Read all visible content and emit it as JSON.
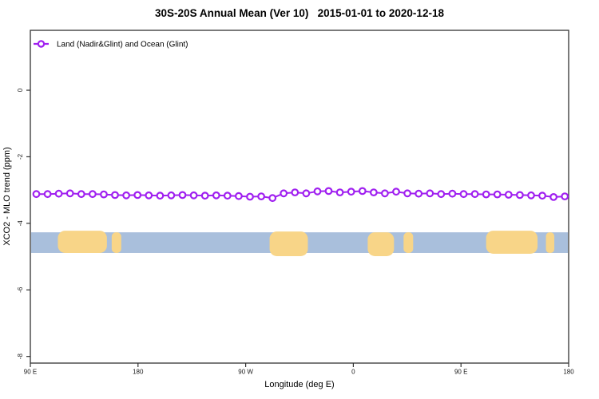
{
  "header": {
    "title": "30S-20S Annual Mean (Ver 10)   2015-01-01 to 2020-12-18"
  },
  "legend": {
    "label": "Land (Nadir&Glint) and Ocean (Glint)",
    "marker": "open-circle-on-line",
    "color": "#A020F0"
  },
  "colors": {
    "series_purple": "#A020F0",
    "ocean_blue": "#A9BFDC",
    "land_tan": "#F8D588",
    "frame": "#333333",
    "text": "#000000"
  },
  "chart_data": {
    "type": "line",
    "title": "30S-20S Annual Mean (Ver 10)   2015-01-01 to 2020-12-18",
    "xlabel": "Longitude (deg E)",
    "ylabel": "XCO2 - MLO trend (ppm)",
    "xlim": [
      90,
      540
    ],
    "ylim": [
      -8.2,
      1.8
    ],
    "grid": false,
    "legend_position": "top-left-inside",
    "x_ticks": [
      {
        "value": 90,
        "label": "90 E"
      },
      {
        "value": 180,
        "label": "180"
      },
      {
        "value": 270,
        "label": "90 W"
      },
      {
        "value": 360,
        "label": "0"
      },
      {
        "value": 450,
        "label": "90 E"
      },
      {
        "value": 540,
        "label": "180"
      }
    ],
    "y_ticks": [
      {
        "value": 0,
        "label": "0"
      },
      {
        "value": -2,
        "label": "-2"
      },
      {
        "value": -4,
        "label": "-4"
      },
      {
        "value": -6,
        "label": "-6"
      },
      {
        "value": -8,
        "label": "-8"
      }
    ],
    "series": [
      {
        "name": "Land (Nadir&Glint) and Ocean (Glint)",
        "color": "#A020F0",
        "marker": "open-circle",
        "x_deg": [
          95.0,
          104.4,
          113.8,
          123.2,
          132.6,
          142.0,
          151.4,
          160.8,
          170.2,
          179.6,
          189.0,
          198.4,
          207.8,
          217.2,
          226.6,
          236.0,
          245.4,
          254.8,
          264.2,
          273.6,
          283.0,
          292.4,
          301.8,
          311.2,
          320.6,
          330.0,
          339.4,
          348.8,
          358.2,
          367.6,
          377.0,
          386.4,
          395.8,
          405.2,
          414.6,
          424.0,
          433.4,
          442.8,
          452.2,
          461.6,
          471.0,
          480.4,
          489.8,
          499.2,
          508.6,
          518.0,
          527.4,
          536.8
        ],
        "values": [
          -3.12,
          -3.12,
          -3.11,
          -3.1,
          -3.12,
          -3.12,
          -3.13,
          -3.15,
          -3.16,
          -3.15,
          -3.16,
          -3.17,
          -3.16,
          -3.15,
          -3.16,
          -3.17,
          -3.16,
          -3.17,
          -3.18,
          -3.2,
          -3.19,
          -3.24,
          -3.1,
          -3.07,
          -3.1,
          -3.04,
          -3.03,
          -3.07,
          -3.05,
          -3.03,
          -3.07,
          -3.1,
          -3.05,
          -3.1,
          -3.11,
          -3.1,
          -3.12,
          -3.11,
          -3.12,
          -3.12,
          -3.13,
          -3.13,
          -3.14,
          -3.15,
          -3.16,
          -3.17,
          -3.21,
          -3.19
        ]
      }
    ],
    "map_band": {
      "description": "land-ocean strip for latitude band 30S-20S",
      "ocean_color": "#A9BFDC",
      "land_color": "#F8D588",
      "top_value": -4.27,
      "bottom_value": -4.89,
      "patches": [
        {
          "name": "australia",
          "lon0": 113,
          "lon1": 154,
          "above": 2,
          "below": 0
        },
        {
          "name": "new-caledonia",
          "lon0": 158,
          "lon1": 166,
          "above": 0,
          "below": 0
        },
        {
          "name": "south-america",
          "lon0": 290,
          "lon1": 322,
          "above": 1,
          "below": 4
        },
        {
          "name": "africa",
          "lon0": 372,
          "lon1": 394,
          "above": 0,
          "below": 4
        },
        {
          "name": "madagascar",
          "lon0": 402,
          "lon1": 410,
          "above": 0,
          "below": 0
        },
        {
          "name": "australia-2",
          "lon0": 471,
          "lon1": 514,
          "above": 2,
          "below": 1
        },
        {
          "name": "new-caledonia-2",
          "lon0": 521,
          "lon1": 528,
          "above": 0,
          "below": 0
        }
      ]
    }
  }
}
